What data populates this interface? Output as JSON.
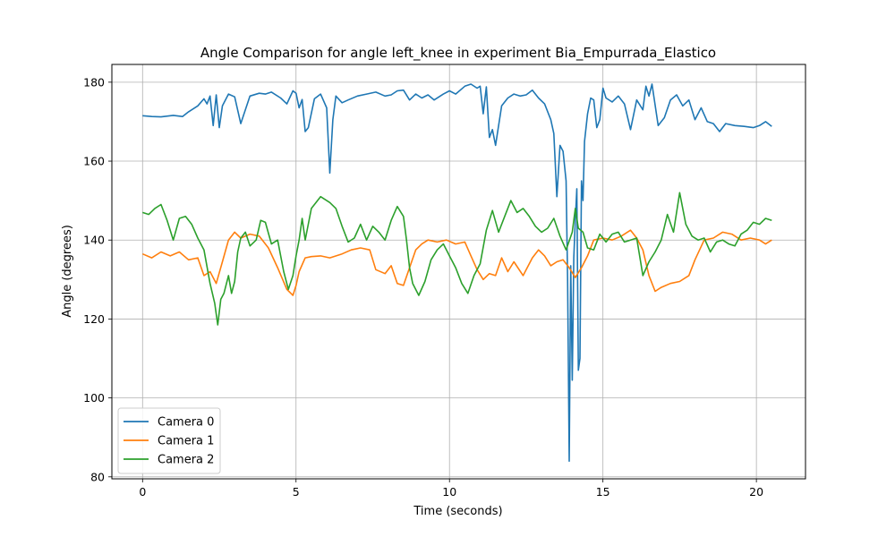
{
  "chart_data": {
    "type": "line",
    "title": "Angle Comparison for angle left_knee in experiment Bia_Empurrada_Elastico",
    "xlabel": "Time (seconds)",
    "ylabel": "Angle (degrees)",
    "xlim": [
      -1.0,
      21.6
    ],
    "ylim": [
      79.5,
      184.5
    ],
    "xticks": [
      0,
      5,
      10,
      15,
      20
    ],
    "yticks": [
      80,
      100,
      120,
      140,
      160,
      180
    ],
    "grid": true,
    "legend_position": "lower-left",
    "series": [
      {
        "name": "Camera 0",
        "color": "#1f77b4",
        "x": [
          0.0,
          0.3,
          0.6,
          1.0,
          1.3,
          1.5,
          1.8,
          2.0,
          2.1,
          2.2,
          2.3,
          2.4,
          2.5,
          2.6,
          2.8,
          3.0,
          3.2,
          3.5,
          3.8,
          4.0,
          4.2,
          4.5,
          4.7,
          4.9,
          5.0,
          5.1,
          5.2,
          5.3,
          5.4,
          5.6,
          5.8,
          6.0,
          6.1,
          6.2,
          6.3,
          6.5,
          6.7,
          7.0,
          7.3,
          7.6,
          7.9,
          8.1,
          8.3,
          8.5,
          8.7,
          8.9,
          9.1,
          9.3,
          9.5,
          9.8,
          10.0,
          10.2,
          10.5,
          10.7,
          10.9,
          11.0,
          11.1,
          11.2,
          11.3,
          11.4,
          11.5,
          11.7,
          11.9,
          12.1,
          12.3,
          12.5,
          12.7,
          12.9,
          13.1,
          13.3,
          13.4,
          13.5,
          13.6,
          13.7,
          13.8,
          13.85,
          13.9,
          13.95,
          14.0,
          14.05,
          14.1,
          14.15,
          14.2,
          14.25,
          14.3,
          14.35,
          14.4,
          14.5,
          14.6,
          14.7,
          14.8,
          14.9,
          15.0,
          15.1,
          15.3,
          15.5,
          15.7,
          15.9,
          16.1,
          16.3,
          16.4,
          16.5,
          16.6,
          16.8,
          17.0,
          17.2,
          17.4,
          17.6,
          17.8,
          18.0,
          18.2,
          18.4,
          18.6,
          18.8,
          19.0,
          19.3,
          19.6,
          19.9,
          20.1,
          20.3,
          20.5
        ],
        "values": [
          171.5,
          171.3,
          171.2,
          171.6,
          171.3,
          172.5,
          174.0,
          175.8,
          174.5,
          176.5,
          169.0,
          176.8,
          168.5,
          174.0,
          177.0,
          176.3,
          169.5,
          176.5,
          177.2,
          177.0,
          177.5,
          176.0,
          174.5,
          177.8,
          177.2,
          173.5,
          175.6,
          167.5,
          168.5,
          175.8,
          177.0,
          173.5,
          157.0,
          170.5,
          176.5,
          174.8,
          175.5,
          176.5,
          177.0,
          177.5,
          176.5,
          176.8,
          177.8,
          178.0,
          175.5,
          177.0,
          176.0,
          176.8,
          175.5,
          177.0,
          177.8,
          177.0,
          179.0,
          179.5,
          178.5,
          179.0,
          172.0,
          178.8,
          166.0,
          168.0,
          164.0,
          174.0,
          176.0,
          177.0,
          176.5,
          176.8,
          178.0,
          176.0,
          174.5,
          170.5,
          167.0,
          151.0,
          164.0,
          162.5,
          155.0,
          130.0,
          84.0,
          133.5,
          104.5,
          135.5,
          145.0,
          153.0,
          107.0,
          110.0,
          155.0,
          150.0,
          165.0,
          172.0,
          176.0,
          175.5,
          168.5,
          170.5,
          178.5,
          176.0,
          175.0,
          176.5,
          174.5,
          168.0,
          175.5,
          173.0,
          179.0,
          176.5,
          179.5,
          169.0,
          171.0,
          175.5,
          176.8,
          174.0,
          175.5,
          170.5,
          173.5,
          170.0,
          169.5,
          167.5,
          169.5,
          169.0,
          168.8,
          168.5,
          169.0,
          170.0,
          168.8
        ]
      },
      {
        "name": "Camera 1",
        "color": "#ff7f0e",
        "x": [
          0.0,
          0.3,
          0.6,
          0.9,
          1.2,
          1.5,
          1.8,
          2.0,
          2.2,
          2.4,
          2.6,
          2.8,
          3.0,
          3.2,
          3.5,
          3.8,
          4.1,
          4.4,
          4.7,
          4.9,
          5.0,
          5.1,
          5.3,
          5.5,
          5.8,
          6.1,
          6.5,
          6.8,
          7.1,
          7.4,
          7.6,
          7.9,
          8.1,
          8.3,
          8.5,
          8.7,
          8.9,
          9.1,
          9.3,
          9.6,
          9.9,
          10.2,
          10.5,
          10.7,
          10.9,
          11.1,
          11.3,
          11.5,
          11.7,
          11.9,
          12.1,
          12.4,
          12.7,
          12.9,
          13.1,
          13.3,
          13.5,
          13.7,
          13.9,
          14.1,
          14.3,
          14.5,
          14.7,
          15.0,
          15.3,
          15.6,
          15.9,
          16.1,
          16.3,
          16.5,
          16.7,
          16.9,
          17.2,
          17.5,
          17.8,
          18.0,
          18.3,
          18.6,
          18.9,
          19.2,
          19.5,
          19.8,
          20.1,
          20.3,
          20.5
        ],
        "values": [
          136.5,
          135.5,
          137.0,
          136.0,
          137.0,
          135.0,
          135.5,
          131.0,
          132.0,
          129.0,
          134.5,
          140.0,
          142.0,
          140.5,
          141.5,
          141.0,
          138.0,
          133.0,
          127.5,
          126.0,
          128.5,
          132.0,
          135.5,
          135.8,
          136.0,
          135.5,
          136.5,
          137.5,
          138.0,
          137.5,
          132.5,
          131.5,
          133.5,
          129.0,
          128.5,
          133.0,
          137.5,
          139.0,
          140.0,
          139.5,
          140.0,
          139.0,
          139.5,
          136.0,
          132.5,
          130.0,
          131.5,
          131.0,
          135.5,
          132.0,
          134.5,
          131.0,
          135.5,
          137.5,
          136.0,
          133.5,
          134.5,
          135.0,
          133.0,
          130.5,
          133.0,
          136.0,
          140.0,
          140.5,
          140.0,
          141.0,
          142.5,
          140.5,
          137.5,
          131.0,
          127.0,
          128.0,
          129.0,
          129.5,
          131.0,
          135.0,
          140.0,
          140.5,
          142.0,
          141.5,
          140.0,
          140.5,
          140.0,
          139.0,
          140.0
        ]
      },
      {
        "name": "Camera 2",
        "color": "#2ca02c",
        "x": [
          0.0,
          0.2,
          0.4,
          0.6,
          0.8,
          1.0,
          1.2,
          1.4,
          1.6,
          1.8,
          2.0,
          2.2,
          2.35,
          2.45,
          2.55,
          2.65,
          2.8,
          2.9,
          3.0,
          3.1,
          3.2,
          3.35,
          3.5,
          3.7,
          3.85,
          4.0,
          4.2,
          4.4,
          4.6,
          4.75,
          4.9,
          5.0,
          5.1,
          5.2,
          5.3,
          5.5,
          5.8,
          6.1,
          6.3,
          6.5,
          6.7,
          6.9,
          7.1,
          7.3,
          7.5,
          7.7,
          7.9,
          8.1,
          8.3,
          8.5,
          8.6,
          8.7,
          8.8,
          9.0,
          9.2,
          9.4,
          9.6,
          9.8,
          10.0,
          10.2,
          10.4,
          10.6,
          10.8,
          11.0,
          11.2,
          11.4,
          11.6,
          11.8,
          12.0,
          12.2,
          12.4,
          12.6,
          12.8,
          13.0,
          13.2,
          13.4,
          13.6,
          13.8,
          14.0,
          14.1,
          14.2,
          14.35,
          14.5,
          14.7,
          14.9,
          15.1,
          15.3,
          15.5,
          15.7,
          15.9,
          16.1,
          16.3,
          16.5,
          16.7,
          16.9,
          17.1,
          17.3,
          17.5,
          17.7,
          17.9,
          18.1,
          18.3,
          18.5,
          18.7,
          18.9,
          19.1,
          19.3,
          19.5,
          19.7,
          19.9,
          20.1,
          20.3,
          20.5
        ],
        "values": [
          147.0,
          146.5,
          148.0,
          149.0,
          145.0,
          140.0,
          145.5,
          146.0,
          144.0,
          140.5,
          137.5,
          129.0,
          124.0,
          118.5,
          125.0,
          126.5,
          131.0,
          126.5,
          129.5,
          137.0,
          140.5,
          142.0,
          138.5,
          140.0,
          145.0,
          144.5,
          139.0,
          140.0,
          132.0,
          127.5,
          131.0,
          136.0,
          140.0,
          145.5,
          140.0,
          148.0,
          151.0,
          149.5,
          148.0,
          143.5,
          139.5,
          140.5,
          144.0,
          140.0,
          143.5,
          142.0,
          140.0,
          145.0,
          148.5,
          146.0,
          140.0,
          133.0,
          129.0,
          126.0,
          129.5,
          135.0,
          137.5,
          139.0,
          136.0,
          133.0,
          129.0,
          126.5,
          131.0,
          134.0,
          142.5,
          147.5,
          142.0,
          146.0,
          150.0,
          147.0,
          148.0,
          146.0,
          143.5,
          142.0,
          143.0,
          145.5,
          141.0,
          137.5,
          142.0,
          148.0,
          143.0,
          142.0,
          138.0,
          137.5,
          141.5,
          139.5,
          141.5,
          142.0,
          139.5,
          140.0,
          140.5,
          131.0,
          134.5,
          137.0,
          140.0,
          146.5,
          142.0,
          152.0,
          144.0,
          141.0,
          140.0,
          140.5,
          137.0,
          139.5,
          140.0,
          139.0,
          138.5,
          141.5,
          142.5,
          144.5,
          144.0,
          145.5,
          145.0
        ]
      }
    ]
  }
}
